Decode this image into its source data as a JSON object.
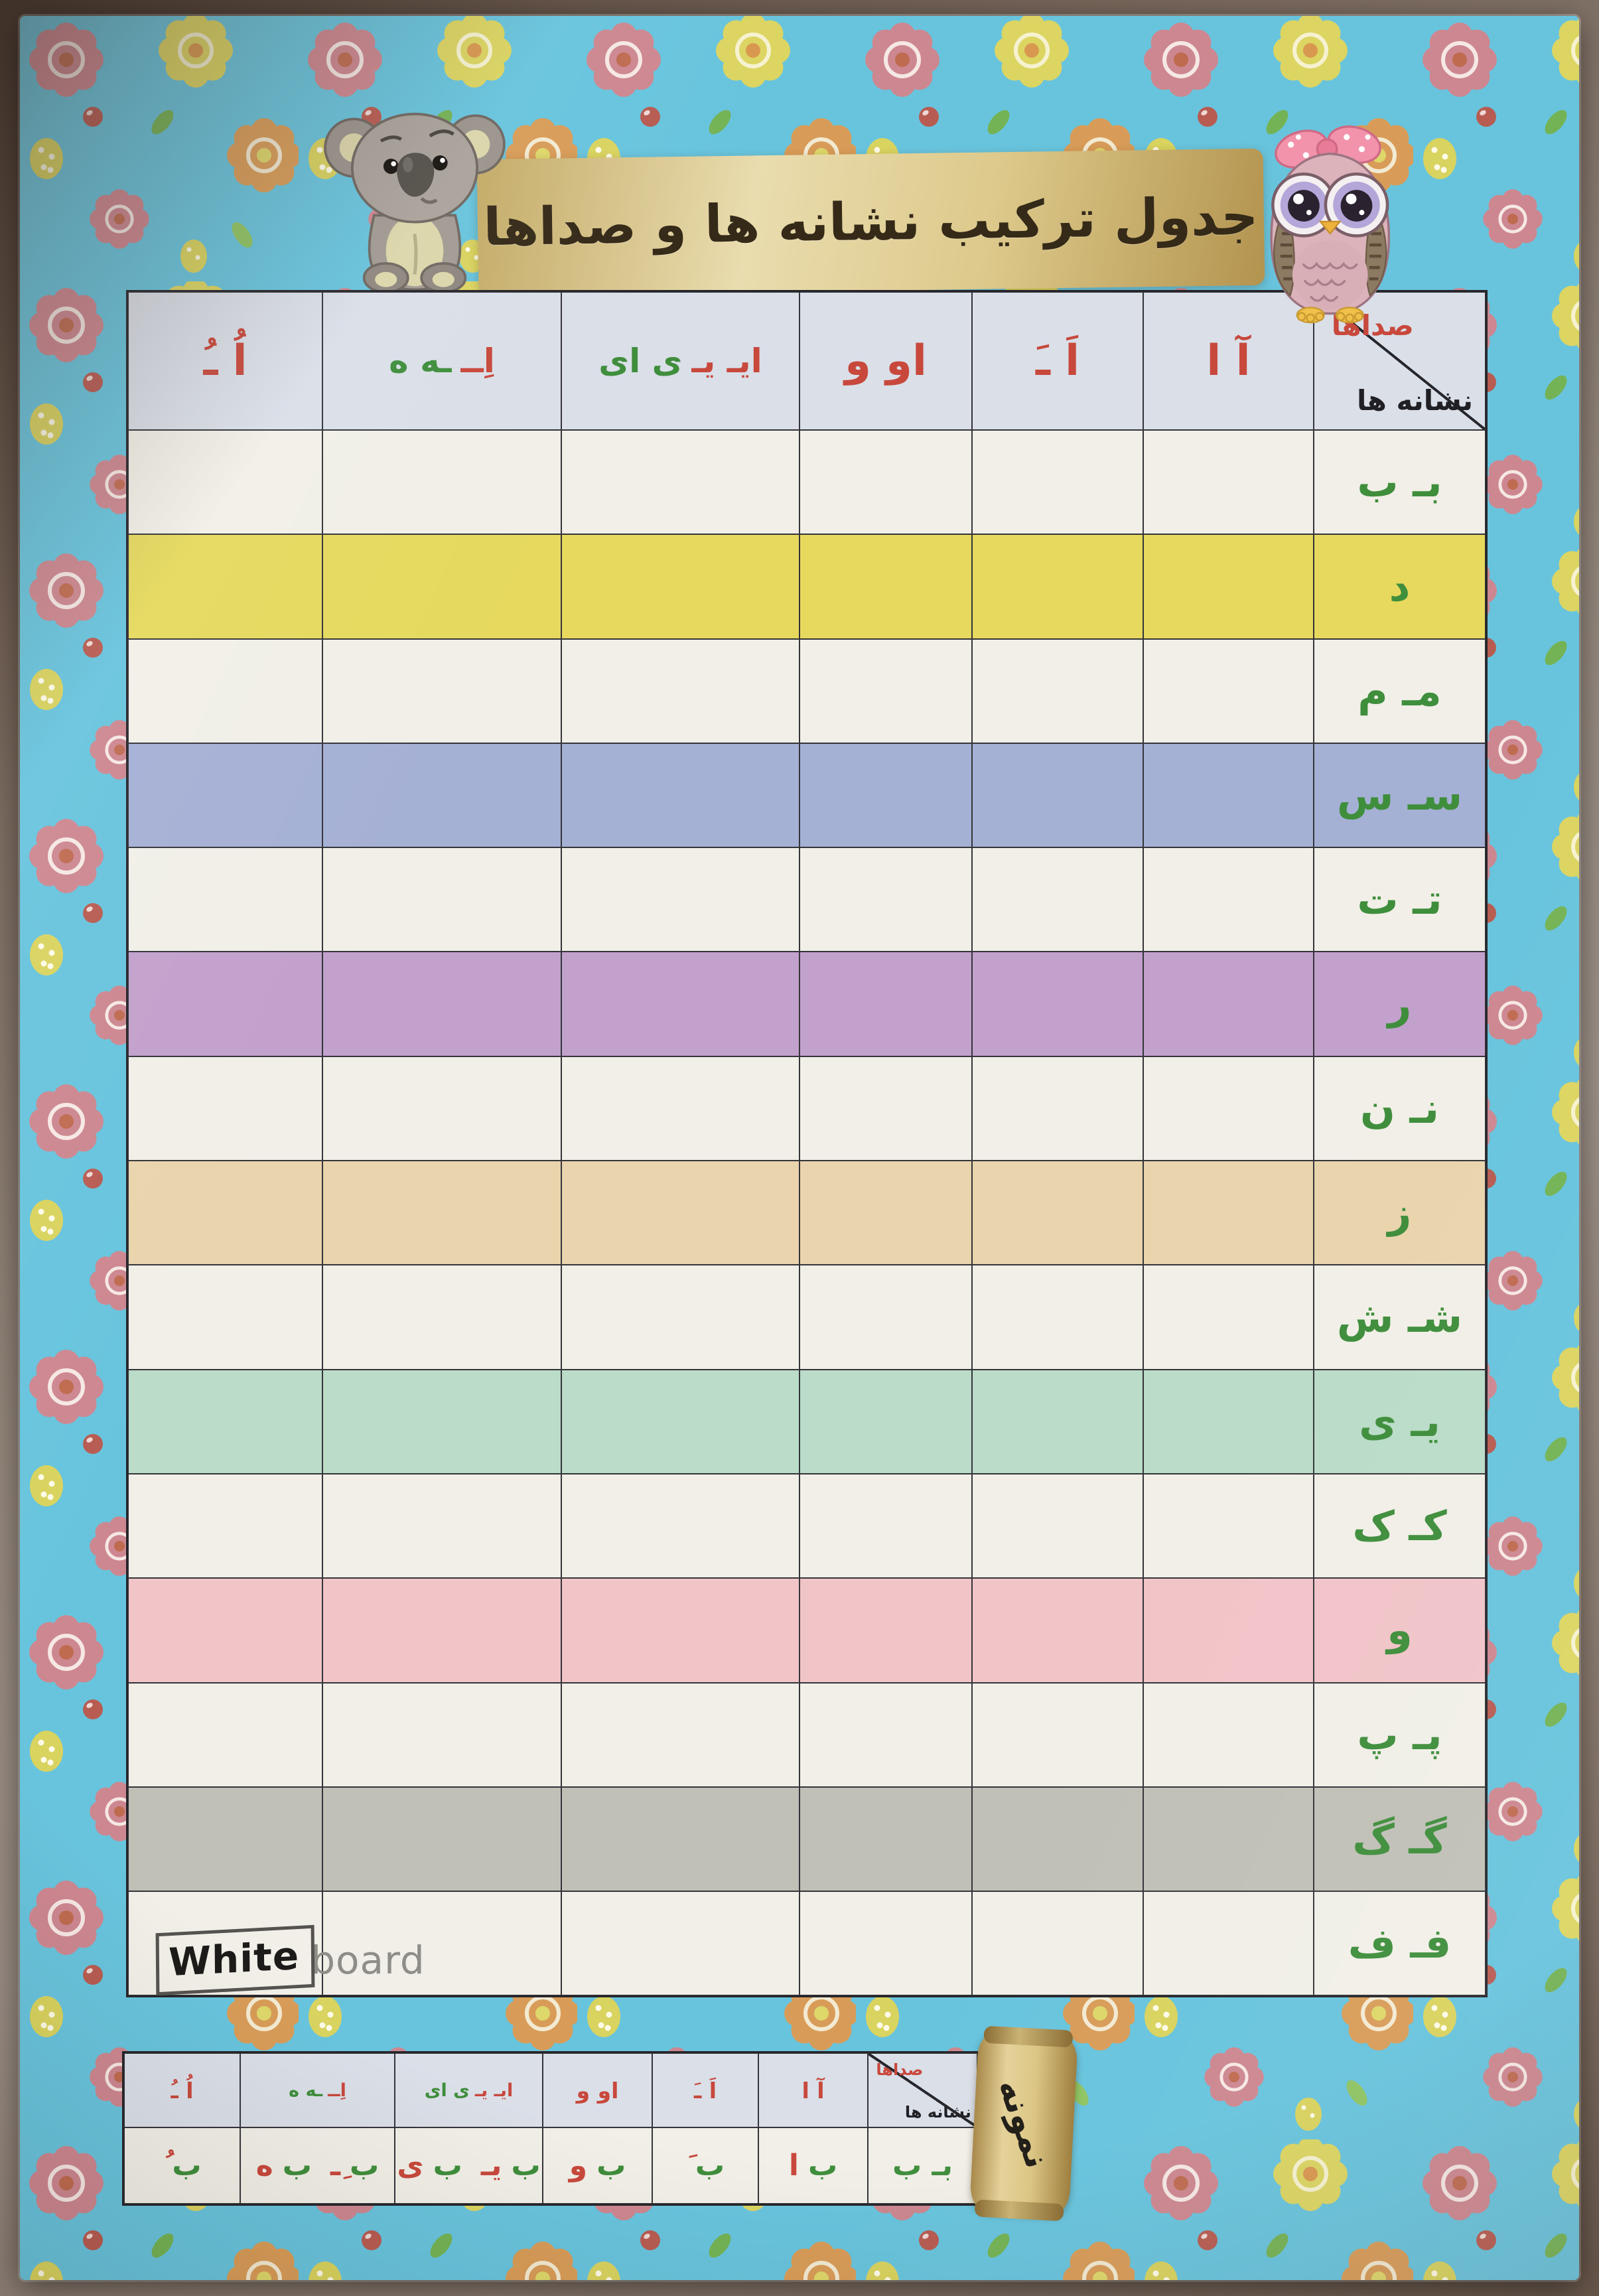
{
  "poster": {
    "title": "جدول ترکیب نشانه ها و صداها",
    "colors": {
      "poster_blue": "#68c4dd",
      "header_bg": "#dadfe8",
      "sound_red": "#c8483c",
      "sign_green": "#3f8e3c",
      "banner_gold": "#ddc98b",
      "row_white": "#f1efe7"
    }
  },
  "main_table": {
    "corner": {
      "sounds_label": "صداها",
      "signs_label": "نشانه ها"
    },
    "sound_headers": [
      {
        "name": "aa-madda",
        "segments": [
          {
            "text": "آ ا",
            "color": "red"
          }
        ]
      },
      {
        "name": "a-fatha",
        "segments": [
          {
            "text": "اَ ـَ",
            "color": "red"
          }
        ]
      },
      {
        "name": "oo-vav",
        "segments": [
          {
            "text": "او و",
            "color": "red"
          }
        ]
      },
      {
        "name": "ee-ya",
        "segments": [
          {
            "text": "ایـ یـ ",
            "color": "red"
          },
          {
            "text": "ی ای",
            "color": "green"
          }
        ]
      },
      {
        "name": "e-kasra",
        "segments": [
          {
            "text": "اِــ ",
            "color": "red"
          },
          {
            "text": "ـه ه",
            "color": "green"
          }
        ]
      },
      {
        "name": "o-damma",
        "segments": [
          {
            "text": "اُ ـُ",
            "color": "red"
          }
        ]
      }
    ],
    "rows": [
      {
        "label": "بـ ب",
        "bg": "#f1efe7"
      },
      {
        "label": "د",
        "bg": "#e6d95e"
      },
      {
        "label": "مـ م",
        "bg": "#f1efe7"
      },
      {
        "label": "سـ س",
        "bg": "#a5b0d5"
      },
      {
        "label": "تـ ت",
        "bg": "#f1efe7"
      },
      {
        "label": "ر",
        "bg": "#c2a1cc"
      },
      {
        "label": "نـ ن",
        "bg": "#f1efe7"
      },
      {
        "label": "ز",
        "bg": "#e9d4ad"
      },
      {
        "label": "شـ ش",
        "bg": "#f1efe7"
      },
      {
        "label": "یـ ی",
        "bg": "#badcc8"
      },
      {
        "label": "کـ ک",
        "bg": "#f1efe7"
      },
      {
        "label": "و",
        "bg": "#f1c4c8"
      },
      {
        "label": "پـ پ",
        "bg": "#f1efe7"
      },
      {
        "label": "گـ گ",
        "bg": "#c0c0b7"
      },
      {
        "label": "فـ ف",
        "bg": "#f1efe7"
      }
    ]
  },
  "logo": {
    "bold": "White",
    "light": "board"
  },
  "sample_table": {
    "scroll_label": "نمونه",
    "corner": {
      "sounds_label": "صداها",
      "signs_label": "نشانه ها"
    },
    "sound_headers": [
      {
        "name": "aa-madda",
        "segments": [
          {
            "text": "آ ا",
            "color": "red"
          }
        ]
      },
      {
        "name": "a-fatha",
        "segments": [
          {
            "text": "اَ ـَ",
            "color": "red"
          }
        ]
      },
      {
        "name": "oo-vav",
        "segments": [
          {
            "text": "او و",
            "color": "red"
          }
        ]
      },
      {
        "name": "ee-ya",
        "segments": [
          {
            "text": "ایـ یـ ",
            "color": "red"
          },
          {
            "text": "ی ای",
            "color": "green"
          }
        ]
      },
      {
        "name": "e-kasra",
        "segments": [
          {
            "text": "اِــ ",
            "color": "red"
          },
          {
            "text": "ـه ه",
            "color": "green"
          }
        ]
      },
      {
        "name": "o-damma",
        "segments": [
          {
            "text": "اُ ـُ",
            "color": "red"
          }
        ]
      }
    ],
    "row": [
      {
        "name": "be-forms",
        "segments": [
          {
            "text": "بـ ب",
            "color": "green"
          }
        ]
      },
      {
        "name": "ba",
        "segments": [
          {
            "text": "ب",
            "color": "green"
          },
          {
            "text": "ا",
            "color": "red"
          }
        ]
      },
      {
        "name": "ba-fatha",
        "segments": [
          {
            "text": "ب",
            "color": "green"
          },
          {
            "text": "َ",
            "color": "red"
          }
        ]
      },
      {
        "name": "boo",
        "segments": [
          {
            "text": "ب",
            "color": "green"
          },
          {
            "text": "و",
            "color": "red"
          }
        ]
      },
      {
        "name": "bee",
        "segments": [
          {
            "text": "ب",
            "color": "green"
          },
          {
            "text": "یـ",
            "color": "red"
          },
          {
            "text": " ",
            "color": "green"
          },
          {
            "text": "ب",
            "color": "green"
          },
          {
            "text": "ی",
            "color": "red"
          }
        ]
      },
      {
        "name": "be-kasra",
        "segments": [
          {
            "text": "ب",
            "color": "green"
          },
          {
            "text": "ِـ",
            "color": "red"
          },
          {
            "text": " ",
            "color": "green"
          },
          {
            "text": "ب",
            "color": "green"
          },
          {
            "text": "ه",
            "color": "red"
          }
        ]
      },
      {
        "name": "bo-damma",
        "segments": [
          {
            "text": "ب",
            "color": "green"
          },
          {
            "text": "ُ",
            "color": "red"
          }
        ]
      }
    ]
  }
}
